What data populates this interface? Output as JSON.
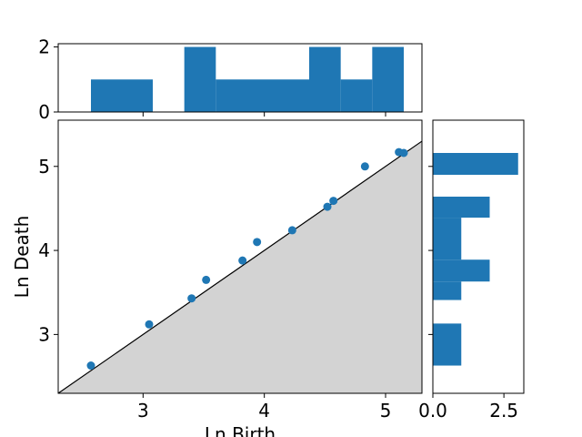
{
  "chart_data": {
    "type": "scatter",
    "xlabel": "Ln Birth",
    "ylabel": "Ln Death",
    "xlim": [
      2.3,
      5.3
    ],
    "ylim": [
      2.3,
      5.55
    ],
    "x_ticks": [
      3,
      4,
      5
    ],
    "y_ticks": [
      3,
      4,
      5
    ],
    "diagonal": true,
    "grid": false,
    "points": [
      {
        "x": 2.57,
        "y": 2.63
      },
      {
        "x": 3.05,
        "y": 3.12
      },
      {
        "x": 3.4,
        "y": 3.43
      },
      {
        "x": 3.52,
        "y": 3.65
      },
      {
        "x": 3.82,
        "y": 3.88
      },
      {
        "x": 3.94,
        "y": 4.1
      },
      {
        "x": 4.23,
        "y": 4.24
      },
      {
        "x": 4.52,
        "y": 4.52
      },
      {
        "x": 4.57,
        "y": 4.59
      },
      {
        "x": 4.83,
        "y": 5.0
      },
      {
        "x": 5.11,
        "y": 5.17
      },
      {
        "x": 5.15,
        "y": 5.16
      }
    ],
    "top_histogram": {
      "ylim": [
        0,
        2.1
      ],
      "y_ticks": [
        0,
        2
      ],
      "bins": [
        {
          "x0": 2.57,
          "x1": 3.08,
          "count": 1
        },
        {
          "x0": 3.08,
          "x1": 3.34,
          "count": 0
        },
        {
          "x0": 3.34,
          "x1": 3.6,
          "count": 2
        },
        {
          "x0": 3.6,
          "x1": 4.37,
          "count": 1
        },
        {
          "x0": 4.37,
          "x1": 4.63,
          "count": 2
        },
        {
          "x0": 4.63,
          "x1": 4.89,
          "count": 1
        },
        {
          "x0": 4.89,
          "x1": 5.15,
          "count": 2
        }
      ]
    },
    "right_histogram": {
      "xlim": [
        0,
        3.2
      ],
      "x_ticks": [
        "0.0",
        "2.5"
      ],
      "bins": [
        {
          "y0": 2.63,
          "y1": 3.13,
          "count": 1
        },
        {
          "y0": 3.13,
          "y1": 3.41,
          "count": 0
        },
        {
          "y0": 3.41,
          "y1": 3.63,
          "count": 1
        },
        {
          "y0": 3.63,
          "y1": 3.89,
          "count": 2
        },
        {
          "y0": 3.89,
          "y1": 4.39,
          "count": 1
        },
        {
          "y0": 4.39,
          "y1": 4.64,
          "count": 2
        },
        {
          "y0": 4.64,
          "y1": 4.9,
          "count": 0
        },
        {
          "y0": 4.9,
          "y1": 5.16,
          "count": 3
        }
      ]
    },
    "colors": {
      "points": "#1f77b4",
      "bars": "#1f77b4",
      "fill_below_diagonal": "#d3d3d3",
      "diagonal": "#000000"
    }
  }
}
